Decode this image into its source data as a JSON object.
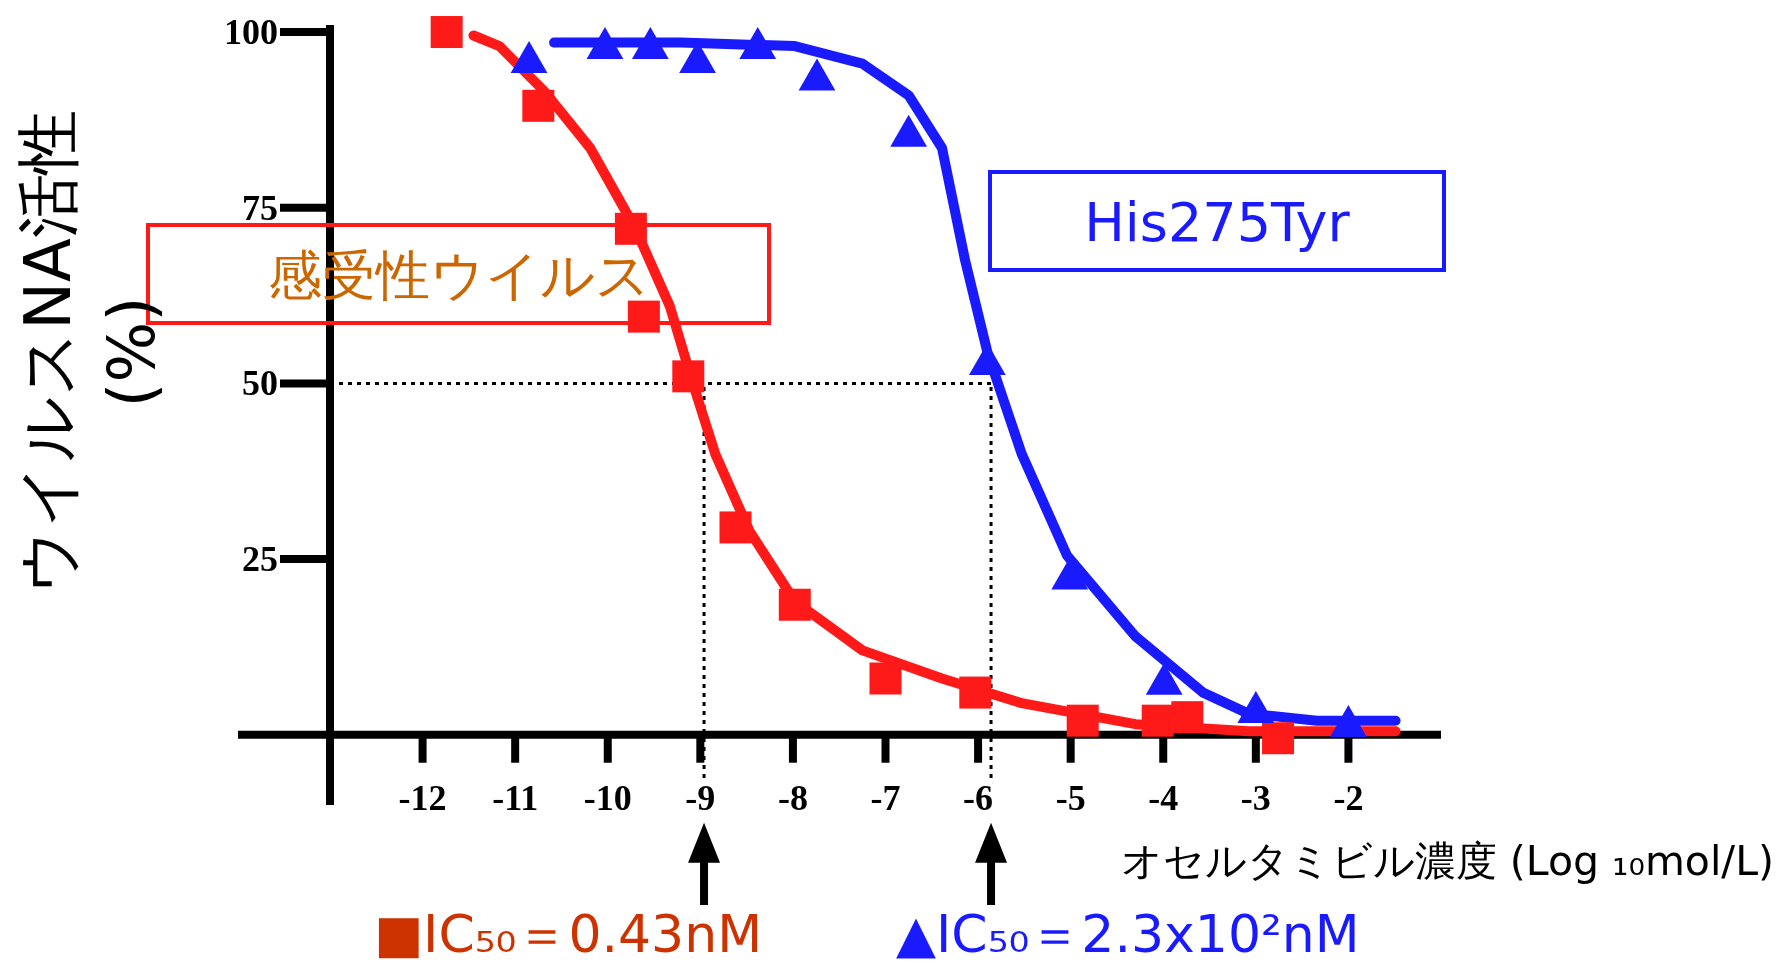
{
  "chart_data": {
    "type": "scatter",
    "xlabel": "オセルタミビル濃度 (Log ₁₀mol/L)",
    "ylabel": "ウイルスNA活性\n(%)",
    "xlim": [
      -13,
      -1
    ],
    "ylim": [
      -10,
      101
    ],
    "xticks": [
      -12,
      -11,
      -10,
      -9,
      -8,
      -7,
      -6,
      -5,
      -4,
      -3,
      -2
    ],
    "yticks": [
      25,
      50,
      75,
      100
    ],
    "series": [
      {
        "type": "line",
        "color": "#ff1a1a",
        "line_style": "solid",
        "x": [
          -11.45,
          -11.17,
          -10.68,
          -10.19,
          -9.7,
          -9.33,
          -9.08,
          -8.84,
          -8.47,
          -7.98,
          -7.25,
          -6.39,
          -5.53,
          -4.3,
          -3.08,
          -1.49
        ],
        "values": [
          99.5,
          98,
          91.5,
          83.5,
          72,
          61,
          50,
          40,
          29,
          19,
          12,
          8,
          4.5,
          1.5,
          0.5,
          0.5
        ]
      },
      {
        "type": "line",
        "color": "#1a1aff",
        "line_style": "solid",
        "x": [
          -10.58,
          -9.21,
          -7.98,
          -7.25,
          -6.75,
          -6.39,
          -6.14,
          -5.9,
          -5.53,
          -5.04,
          -4.3,
          -3.57,
          -3.08,
          -2.34,
          -1.49
        ],
        "values": [
          98.5,
          98.5,
          98,
          95.5,
          91,
          83.5,
          67.5,
          54.5,
          40,
          25.5,
          14,
          6,
          3,
          2,
          2
        ]
      },
      {
        "name": "感受性ウイルス",
        "color": "#ff1a1a",
        "marker": "square",
        "x": [
          -11.74,
          -10.75,
          -9.75,
          -9.61,
          -9.13,
          -8.62,
          -7.98,
          -7.0,
          -6.03,
          -4.87,
          -4.06,
          -3.74,
          -2.76
        ],
        "values": [
          100,
          89.5,
          72,
          59.5,
          51,
          29.5,
          18.5,
          8,
          6,
          2,
          2,
          2.5,
          -0.5
        ]
      },
      {
        "name": "His275Tyr",
        "color": "#1a1aff",
        "marker": "triangle",
        "x": [
          -10.85,
          -10.03,
          -9.54,
          -9.03,
          -8.38,
          -7.74,
          -6.75,
          -5.9,
          -5.01,
          -3.99,
          -3.0,
          -2.0
        ],
        "values": [
          96,
          98,
          98,
          96,
          98,
          93.5,
          85.5,
          53,
          22.5,
          7.5,
          3.5,
          1.5
        ]
      }
    ],
    "ref_lines": [
      {
        "axis": "y",
        "value": 50,
        "color": "#000000",
        "line_style": "dotted"
      },
      {
        "axis": "x",
        "value": -8.96,
        "color": "#000000",
        "line_style": "dotted"
      },
      {
        "axis": "x",
        "value": -5.86,
        "color": "#000000",
        "line_style": "dotted"
      }
    ],
    "annotations": [
      "■IC₅₀＝0.43nM",
      "▲IC₅₀＝2.3x10²nM"
    ]
  }
}
